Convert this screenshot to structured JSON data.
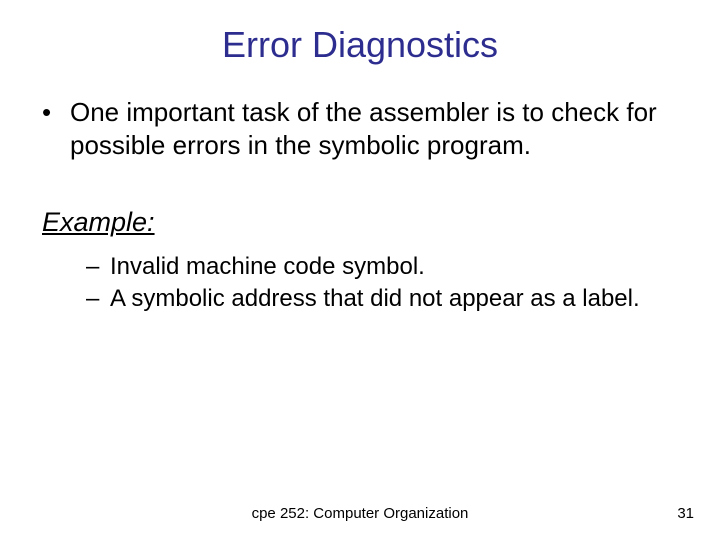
{
  "title": {
    "text": "Error Diagnostics",
    "color": "#2d2d8f",
    "fontsize": 36
  },
  "body_color": "#000000",
  "body_fontsize": 26,
  "bullets": [
    "One important task of the assembler is to check for possible errors in the symbolic program."
  ],
  "example_heading": "Example:",
  "example_fontsize": 27,
  "sub_bullets": [
    "Invalid machine code symbol.",
    "A symbolic address that did not appear as a label."
  ],
  "sub_fontsize": 24,
  "footer": {
    "center": "cpe 252: Computer Organization",
    "page": "31",
    "fontsize": 15,
    "color": "#000000"
  },
  "background_color": "#ffffff"
}
